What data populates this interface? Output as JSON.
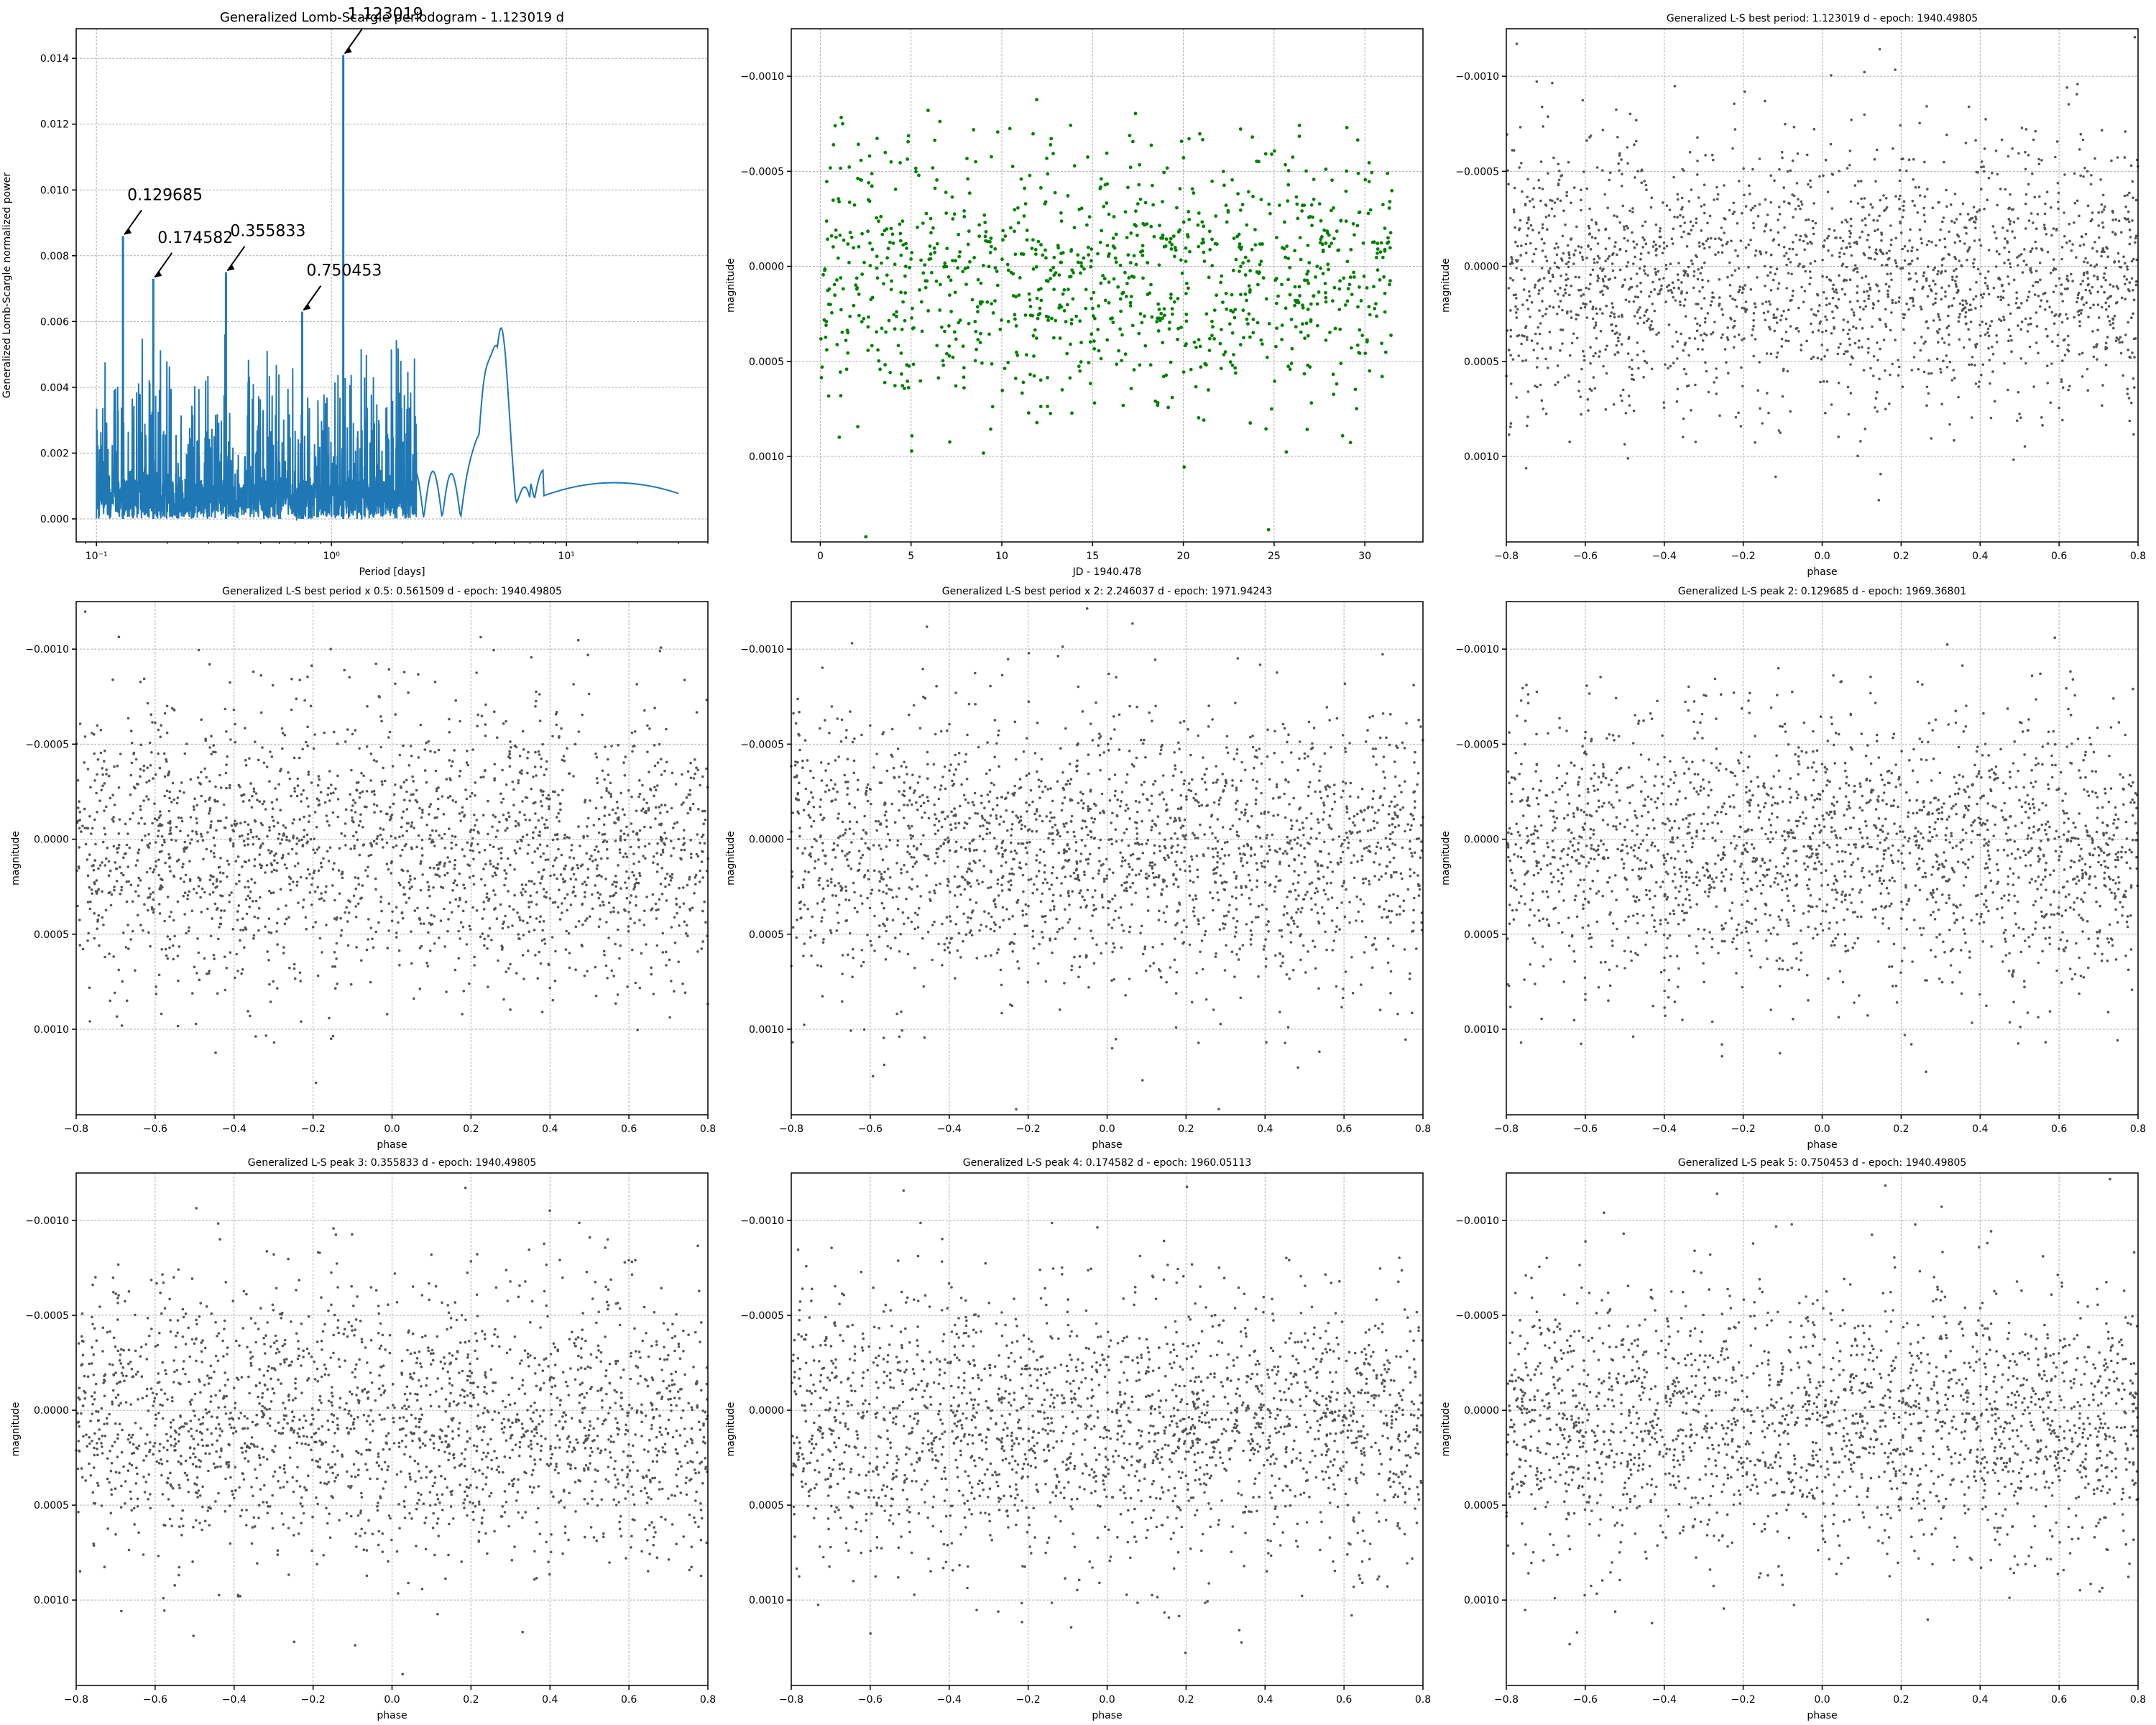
{
  "figure": {
    "background": "#ffffff",
    "grid_color": "#b0b0b0",
    "axis_color": "#000000"
  },
  "chart_data": [
    {
      "type": "line",
      "title": "Generalized Lomb-Scargle periodogram - 1.123019 d",
      "xlabel": "Period [days]",
      "ylabel": "Generalized Lomb-Scargle normalized power",
      "xscale": "log",
      "xlim": [
        0.082,
        40
      ],
      "ylim": [
        -0.0007,
        0.0149
      ],
      "xticks": [
        0.1,
        1,
        10
      ],
      "xtick_labels": [
        "10⁻¹",
        "10⁰",
        "10¹"
      ],
      "yticks": [
        0,
        0.002,
        0.004,
        0.006,
        0.008,
        0.01,
        0.012,
        0.014
      ],
      "ytick_labels": [
        "0.000",
        "0.002",
        "0.004",
        "0.006",
        "0.008",
        "0.010",
        "0.012",
        "0.014"
      ],
      "grid": true,
      "color": "#1f77b4",
      "peaks": [
        {
          "x": 1.123019,
          "y": 0.0141,
          "label": "1.123019"
        },
        {
          "x": 0.129685,
          "y": 0.0086,
          "label": "0.129685"
        },
        {
          "x": 0.174582,
          "y": 0.0073,
          "label": "0.174582"
        },
        {
          "x": 0.355833,
          "y": 0.0075,
          "label": "0.355833"
        },
        {
          "x": 0.750453,
          "y": 0.0063,
          "label": "0.750453"
        }
      ],
      "smooth_features": [
        {
          "x": 2.0,
          "y": 0.0052
        },
        {
          "x": 4.5,
          "y": 0.0033
        },
        {
          "x": 5.3,
          "y": 0.0058
        },
        {
          "x": 9.5,
          "y": 0.0012
        },
        {
          "x": 18,
          "y": 0.0011
        },
        {
          "x": 30,
          "y": 0.0004
        }
      ]
    },
    {
      "type": "scatter",
      "title": "",
      "xlabel": "JD - 1940.478",
      "ylabel": "magnitude",
      "xlim": [
        -1.6,
        33.2
      ],
      "ylim": [
        0.00145,
        -0.00125
      ],
      "y_inverted": true,
      "xticks": [
        0,
        5,
        10,
        15,
        20,
        25,
        30
      ],
      "xtick_labels": [
        "0",
        "5",
        "10",
        "15",
        "20",
        "25",
        "30"
      ],
      "yticks": [
        -0.001,
        -0.0005,
        0,
        0.0005,
        0.001
      ],
      "ytick_labels": [
        "−0.0010",
        "−0.0005",
        "0.0000",
        "0.0005",
        "0.0010"
      ],
      "grid": true,
      "color": "#008000",
      "n_points": 1050,
      "x_range": [
        0,
        31.5
      ],
      "y_mean": 5e-05,
      "y_std": 0.00035
    },
    {
      "type": "scatter",
      "title": "Generalized L-S best period: 1.123019 d - epoch: 1940.49805",
      "xlabel": "phase",
      "ylabel": "magnitude",
      "xlim": [
        -0.8,
        0.8
      ],
      "ylim": [
        0.00145,
        -0.00125
      ],
      "y_inverted": true,
      "xticks": [
        -0.8,
        -0.6,
        -0.4,
        -0.2,
        0,
        0.2,
        0.4,
        0.6,
        0.8
      ],
      "xtick_labels": [
        "−0.8",
        "−0.6",
        "−0.4",
        "−0.2",
        "0.0",
        "0.2",
        "0.4",
        "0.6",
        "0.8"
      ],
      "yticks": [
        -0.001,
        -0.0005,
        0,
        0.0005,
        0.001
      ],
      "ytick_labels": [
        "−0.0010",
        "−0.0005",
        "0.0000",
        "0.0005",
        "0.0010"
      ],
      "grid": true,
      "color": "#555555",
      "n_points": 2100,
      "y_mean": 6e-05,
      "y_std": 0.00036
    },
    {
      "type": "scatter",
      "title": "Generalized L-S best period x 0.5: 0.561509 d - epoch: 1940.49805",
      "xlabel": "phase",
      "ylabel": "magnitude",
      "xlim": [
        -0.8,
        0.8
      ],
      "ylim": [
        0.00145,
        -0.00125
      ],
      "y_inverted": true,
      "xticks": [
        -0.8,
        -0.6,
        -0.4,
        -0.2,
        0,
        0.2,
        0.4,
        0.6,
        0.8
      ],
      "xtick_labels": [
        "−0.8",
        "−0.6",
        "−0.4",
        "−0.2",
        "0.0",
        "0.2",
        "0.4",
        "0.6",
        "0.8"
      ],
      "yticks": [
        -0.001,
        -0.0005,
        0,
        0.0005,
        0.001
      ],
      "ytick_labels": [
        "−0.0010",
        "−0.0005",
        "0.0000",
        "0.0005",
        "0.0010"
      ],
      "grid": true,
      "color": "#555555",
      "n_points": 2100,
      "y_mean": 6e-05,
      "y_std": 0.00036
    },
    {
      "type": "scatter",
      "title": "Generalized L-S best period x 2: 2.246037 d - epoch: 1971.94243",
      "xlabel": "phase",
      "ylabel": "magnitude",
      "xlim": [
        -0.8,
        0.8
      ],
      "ylim": [
        0.00145,
        -0.00125
      ],
      "y_inverted": true,
      "xticks": [
        -0.8,
        -0.6,
        -0.4,
        -0.2,
        0,
        0.2,
        0.4,
        0.6,
        0.8
      ],
      "xtick_labels": [
        "−0.8",
        "−0.6",
        "−0.4",
        "−0.2",
        "0.0",
        "0.2",
        "0.4",
        "0.6",
        "0.8"
      ],
      "yticks": [
        -0.001,
        -0.0005,
        0,
        0.0005,
        0.001
      ],
      "ytick_labels": [
        "−0.0010",
        "−0.0005",
        "0.0000",
        "0.0005",
        "0.0010"
      ],
      "grid": true,
      "color": "#555555",
      "n_points": 2100,
      "y_mean": 6e-05,
      "y_std": 0.00036
    },
    {
      "type": "scatter",
      "title": "Generalized L-S peak 2: 0.129685 d - epoch: 1969.36801",
      "xlabel": "phase",
      "ylabel": "magnitude",
      "xlim": [
        -0.8,
        0.8
      ],
      "ylim": [
        0.00145,
        -0.00125
      ],
      "y_inverted": true,
      "xticks": [
        -0.8,
        -0.6,
        -0.4,
        -0.2,
        0,
        0.2,
        0.4,
        0.6,
        0.8
      ],
      "xtick_labels": [
        "−0.8",
        "−0.6",
        "−0.4",
        "−0.2",
        "0.0",
        "0.2",
        "0.4",
        "0.6",
        "0.8"
      ],
      "yticks": [
        -0.001,
        -0.0005,
        0,
        0.0005,
        0.001
      ],
      "ytick_labels": [
        "−0.0010",
        "−0.0005",
        "0.0000",
        "0.0005",
        "0.0010"
      ],
      "grid": true,
      "color": "#555555",
      "n_points": 2100,
      "y_mean": 6e-05,
      "y_std": 0.00036
    },
    {
      "type": "scatter",
      "title": "Generalized L-S peak 3: 0.355833 d - epoch: 1940.49805",
      "xlabel": "phase",
      "ylabel": "magnitude",
      "xlim": [
        -0.8,
        0.8
      ],
      "ylim": [
        0.00145,
        -0.00125
      ],
      "y_inverted": true,
      "xticks": [
        -0.8,
        -0.6,
        -0.4,
        -0.2,
        0,
        0.2,
        0.4,
        0.6,
        0.8
      ],
      "xtick_labels": [
        "−0.8",
        "−0.6",
        "−0.4",
        "−0.2",
        "0.0",
        "0.2",
        "0.4",
        "0.6",
        "0.8"
      ],
      "yticks": [
        -0.001,
        -0.0005,
        0,
        0.0005,
        0.001
      ],
      "ytick_labels": [
        "−0.0010",
        "−0.0005",
        "0.0000",
        "0.0005",
        "0.0010"
      ],
      "grid": true,
      "color": "#555555",
      "n_points": 2100,
      "y_mean": 6e-05,
      "y_std": 0.00036
    },
    {
      "type": "scatter",
      "title": "Generalized L-S peak 4: 0.174582 d - epoch: 1960.05113",
      "xlabel": "phase",
      "ylabel": "magnitude",
      "xlim": [
        -0.8,
        0.8
      ],
      "ylim": [
        0.00145,
        -0.00125
      ],
      "y_inverted": true,
      "xticks": [
        -0.8,
        -0.6,
        -0.4,
        -0.2,
        0,
        0.2,
        0.4,
        0.6,
        0.8
      ],
      "xtick_labels": [
        "−0.8",
        "−0.6",
        "−0.4",
        "−0.2",
        "0.0",
        "0.2",
        "0.4",
        "0.6",
        "0.8"
      ],
      "yticks": [
        -0.001,
        -0.0005,
        0,
        0.0005,
        0.001
      ],
      "ytick_labels": [
        "−0.0010",
        "−0.0005",
        "0.0000",
        "0.0005",
        "0.0010"
      ],
      "grid": true,
      "color": "#555555",
      "n_points": 2100,
      "y_mean": 6e-05,
      "y_std": 0.00036
    },
    {
      "type": "scatter",
      "title": "Generalized L-S peak 5: 0.750453 d - epoch: 1940.49805",
      "xlabel": "phase",
      "ylabel": "magnitude",
      "xlim": [
        -0.8,
        0.8
      ],
      "ylim": [
        0.00145,
        -0.00125
      ],
      "y_inverted": true,
      "xticks": [
        -0.8,
        -0.6,
        -0.4,
        -0.2,
        0,
        0.2,
        0.4,
        0.6,
        0.8
      ],
      "xtick_labels": [
        "−0.8",
        "−0.6",
        "−0.4",
        "−0.2",
        "0.0",
        "0.2",
        "0.4",
        "0.6",
        "0.8"
      ],
      "yticks": [
        -0.001,
        -0.0005,
        0,
        0.0005,
        0.001
      ],
      "ytick_labels": [
        "−0.0010",
        "−0.0005",
        "0.0000",
        "0.0005",
        "0.0010"
      ],
      "grid": true,
      "color": "#555555",
      "n_points": 2100,
      "y_mean": 6e-05,
      "y_std": 0.00036
    }
  ]
}
